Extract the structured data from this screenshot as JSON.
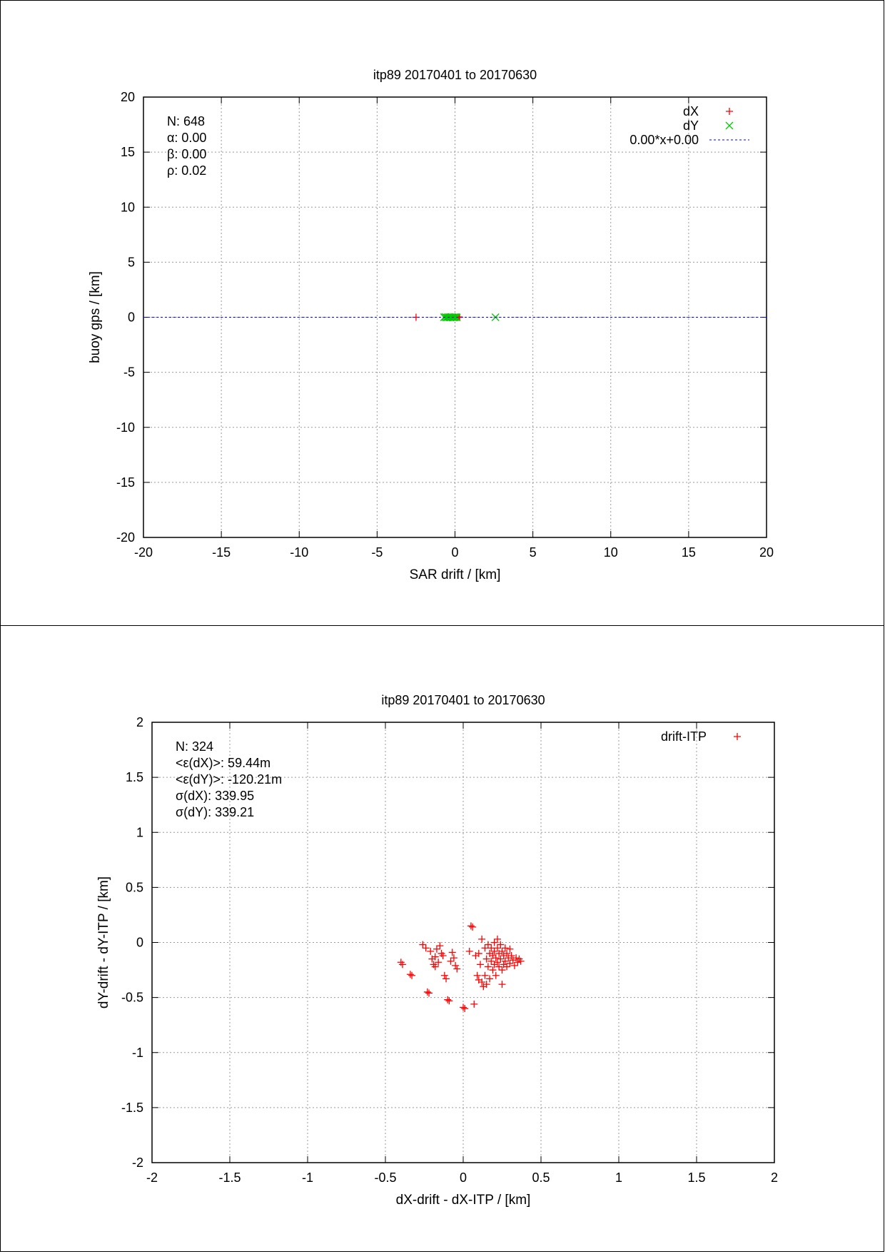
{
  "chart_data": [
    {
      "type": "scatter",
      "title": "itp89 20170401 to 20170630",
      "xlabel": "SAR drift / [km]",
      "ylabel": "buoy gps / [km]",
      "xlim": [
        -20,
        20
      ],
      "ylim": [
        -20,
        20
      ],
      "x_ticks": [
        "-20",
        "-15",
        "-10",
        "-5",
        "0",
        "5",
        "10",
        "15",
        "20"
      ],
      "y_ticks": [
        "-20",
        "-15",
        "-10",
        "-5",
        "0",
        "5",
        "10",
        "15",
        "20"
      ],
      "grid": true,
      "legend_position": "top-right",
      "stats": [
        "N: 648",
        "α: 0.00",
        "β: 0.00",
        "ρ: 0.02"
      ],
      "series": [
        {
          "name": "dX",
          "marker": "+",
          "color": "#ff0000",
          "points": [
            [
              -2.5,
              0
            ],
            [
              -0.55,
              0
            ],
            [
              -0.45,
              0.02
            ],
            [
              -0.35,
              -0.02
            ],
            [
              -0.25,
              0
            ],
            [
              -0.15,
              0.01
            ],
            [
              -0.05,
              0
            ],
            [
              0.05,
              -0.01
            ],
            [
              0.15,
              0
            ],
            [
              0.25,
              0.02
            ],
            [
              0.3,
              0
            ]
          ]
        },
        {
          "name": "dY",
          "marker": "x",
          "color": "#00cc00",
          "points": [
            [
              2.6,
              0
            ],
            [
              -0.7,
              0
            ],
            [
              -0.62,
              0.02
            ],
            [
              -0.55,
              -0.02
            ],
            [
              -0.48,
              0
            ],
            [
              -0.4,
              0.01
            ],
            [
              -0.32,
              -0.01
            ],
            [
              -0.25,
              0
            ],
            [
              -0.18,
              0.02
            ],
            [
              -0.1,
              -0.02
            ],
            [
              -0.02,
              0
            ],
            [
              0.05,
              0.01
            ],
            [
              0.12,
              -0.01
            ]
          ]
        },
        {
          "name": "0.00*x+0.00",
          "type": "line",
          "style": "dashed",
          "color": "#0000ff",
          "slope": 0.0,
          "intercept": 0.0
        }
      ]
    },
    {
      "type": "scatter",
      "title": "itp89 20170401 to 20170630",
      "xlabel": "dX-drift - dX-ITP / [km]",
      "ylabel": "dY-drift - dY-ITP / [km]",
      "xlim": [
        -2,
        2
      ],
      "ylim": [
        -2,
        2
      ],
      "x_ticks": [
        "-2",
        "-1.5",
        "-1",
        "-0.5",
        "0",
        "0.5",
        "1",
        "1.5",
        "2"
      ],
      "y_ticks": [
        "-2",
        "-1.5",
        "-1",
        "-0.5",
        "0",
        "0.5",
        "1",
        "1.5",
        "2"
      ],
      "grid": true,
      "legend_position": "top-right",
      "stats": [
        "N: 324",
        "<ε(dX)>:  59.44m",
        "<ε(dY)>: -120.21m",
        "σ(dX):  339.95",
        "σ(dY):  339.21"
      ],
      "series": [
        {
          "name": "drift-ITP",
          "marker": "+",
          "color": "#ff0000",
          "points": [
            [
              -0.4,
              -0.18
            ],
            [
              -0.39,
              -0.2
            ],
            [
              -0.34,
              -0.29
            ],
            [
              -0.33,
              -0.3
            ],
            [
              -0.26,
              -0.02
            ],
            [
              -0.24,
              -0.05
            ],
            [
              -0.23,
              -0.45
            ],
            [
              -0.22,
              -0.46
            ],
            [
              -0.21,
              -0.08
            ],
            [
              -0.2,
              -0.15
            ],
            [
              -0.19,
              -0.2
            ],
            [
              -0.18,
              -0.13
            ],
            [
              -0.18,
              -0.22
            ],
            [
              -0.17,
              -0.06
            ],
            [
              -0.16,
              -0.18
            ],
            [
              -0.15,
              -0.03
            ],
            [
              -0.14,
              -0.1
            ],
            [
              -0.13,
              -0.12
            ],
            [
              -0.12,
              -0.3
            ],
            [
              -0.11,
              -0.33
            ],
            [
              -0.1,
              -0.52
            ],
            [
              -0.09,
              -0.53
            ],
            [
              -0.08,
              -0.17
            ],
            [
              -0.07,
              -0.09
            ],
            [
              -0.06,
              -0.14
            ],
            [
              -0.05,
              -0.21
            ],
            [
              -0.04,
              -0.24
            ],
            [
              0.0,
              -0.59
            ],
            [
              0.01,
              -0.6
            ],
            [
              0.04,
              -0.08
            ],
            [
              0.05,
              0.15
            ],
            [
              0.06,
              0.14
            ],
            [
              0.07,
              -0.56
            ],
            [
              0.08,
              -0.12
            ],
            [
              0.09,
              -0.3
            ],
            [
              0.1,
              -0.1
            ],
            [
              0.1,
              -0.34
            ],
            [
              0.11,
              -0.2
            ],
            [
              0.12,
              0.03
            ],
            [
              0.12,
              -0.36
            ],
            [
              0.13,
              -0.4
            ],
            [
              0.14,
              -0.05
            ],
            [
              0.14,
              -0.3
            ],
            [
              0.15,
              -0.15
            ],
            [
              0.15,
              -0.38
            ],
            [
              0.16,
              -0.02
            ],
            [
              0.16,
              -0.22
            ],
            [
              0.17,
              -0.1
            ],
            [
              0.17,
              -0.33
            ],
            [
              0.18,
              -0.17
            ],
            [
              0.18,
              -0.05
            ],
            [
              0.19,
              -0.25
            ],
            [
              0.19,
              -0.12
            ],
            [
              0.2,
              0.0
            ],
            [
              0.2,
              -0.08
            ],
            [
              0.2,
              -0.2
            ],
            [
              0.21,
              -0.14
            ],
            [
              0.21,
              -0.3
            ],
            [
              0.22,
              -0.05
            ],
            [
              0.22,
              -0.18
            ],
            [
              0.22,
              0.03
            ],
            [
              0.23,
              -0.1
            ],
            [
              0.23,
              -0.22
            ],
            [
              0.24,
              -0.15
            ],
            [
              0.24,
              -0.02
            ],
            [
              0.25,
              -0.08
            ],
            [
              0.25,
              -0.25
            ],
            [
              0.25,
              -0.38
            ],
            [
              0.26,
              -0.12
            ],
            [
              0.26,
              -0.2
            ],
            [
              0.27,
              -0.05
            ],
            [
              0.27,
              -0.17
            ],
            [
              0.28,
              -0.1
            ],
            [
              0.28,
              -0.22
            ],
            [
              0.29,
              -0.14
            ],
            [
              0.3,
              -0.06
            ],
            [
              0.3,
              -0.19
            ],
            [
              0.31,
              -0.12
            ],
            [
              0.32,
              -0.16
            ],
            [
              0.33,
              -0.21
            ],
            [
              0.34,
              -0.14
            ],
            [
              0.35,
              -0.18
            ],
            [
              0.36,
              -0.15
            ],
            [
              0.37,
              -0.17
            ]
          ]
        }
      ]
    }
  ]
}
